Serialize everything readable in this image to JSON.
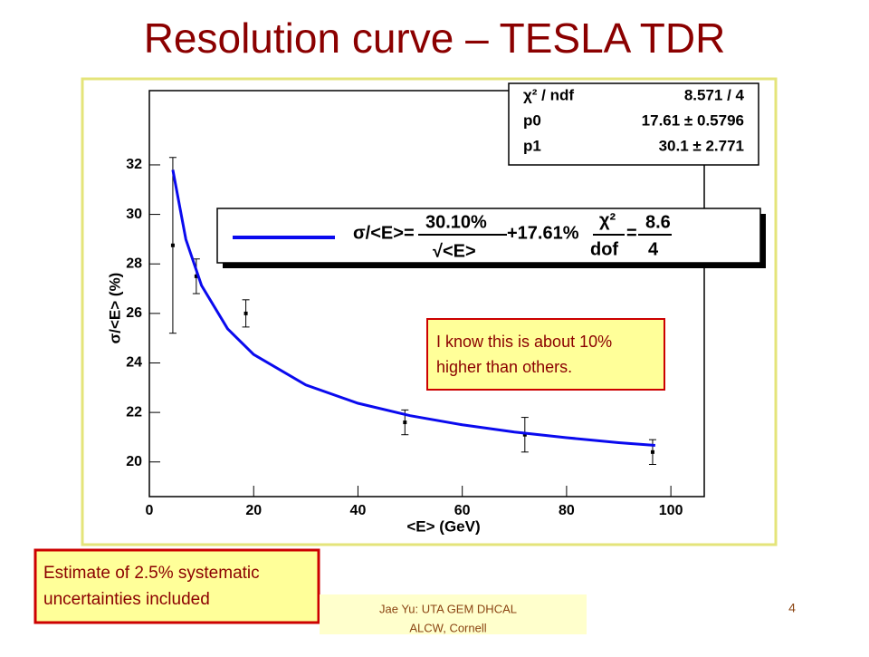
{
  "slide_title": "Resolution curve – TESLA TDR",
  "callout": [
    "I know this is about 10%",
    "higher than others."
  ],
  "note": [
    "Estimate of 2.5% systematic",
    "uncertainties included"
  ],
  "footer": [
    "Jae Yu: UTA GEM DHCAL",
    "ALCW, Cornell"
  ],
  "page_number": "4",
  "chart_data": {
    "type": "scatter",
    "x_label": "<E> (GeV)",
    "y_label": "σ/<E> (%)",
    "xlim": [
      0,
      106.4
    ],
    "ylim": [
      18.6,
      35
    ],
    "xticks": [
      0,
      20,
      40,
      60,
      80,
      100
    ],
    "yticks": [
      20,
      22,
      24,
      26,
      28,
      30,
      32
    ],
    "series": [
      {
        "color": "#000000",
        "x": [
          4.5,
          9,
          18.5,
          49,
          72,
          96.5
        ],
        "values": [
          28.75,
          27.5,
          26.0,
          21.6,
          21.1,
          20.4
        ],
        "errors": [
          3.55,
          0.7,
          0.55,
          0.5,
          0.7,
          0.5
        ]
      },
      {
        "type": "line",
        "color": "#0a0aee",
        "x": [
          4.5,
          7,
          10,
          15,
          20,
          30,
          40,
          50,
          60,
          70,
          80,
          90,
          97
        ],
        "values": [
          31.8,
          28.99,
          27.13,
          25.38,
          24.34,
          23.11,
          22.37,
          21.87,
          21.5,
          21.21,
          20.98,
          20.78,
          20.67
        ]
      }
    ],
    "stats": [
      [
        "χ² / ndf",
        "8.571 / 4"
      ],
      [
        "p0",
        "17.61 ± 0.5796"
      ],
      [
        "p1",
        "30.1 ± 2.771"
      ]
    ],
    "legend_formula": {
      "lhs": "σ/<E>=",
      "num": "30.10%",
      "den": "√<E>",
      "plus": "+17.61%",
      "chi": "χ²",
      "dof": "dof",
      "eq": "=",
      "chi_val": "8.6",
      "dof_val": "4"
    }
  }
}
